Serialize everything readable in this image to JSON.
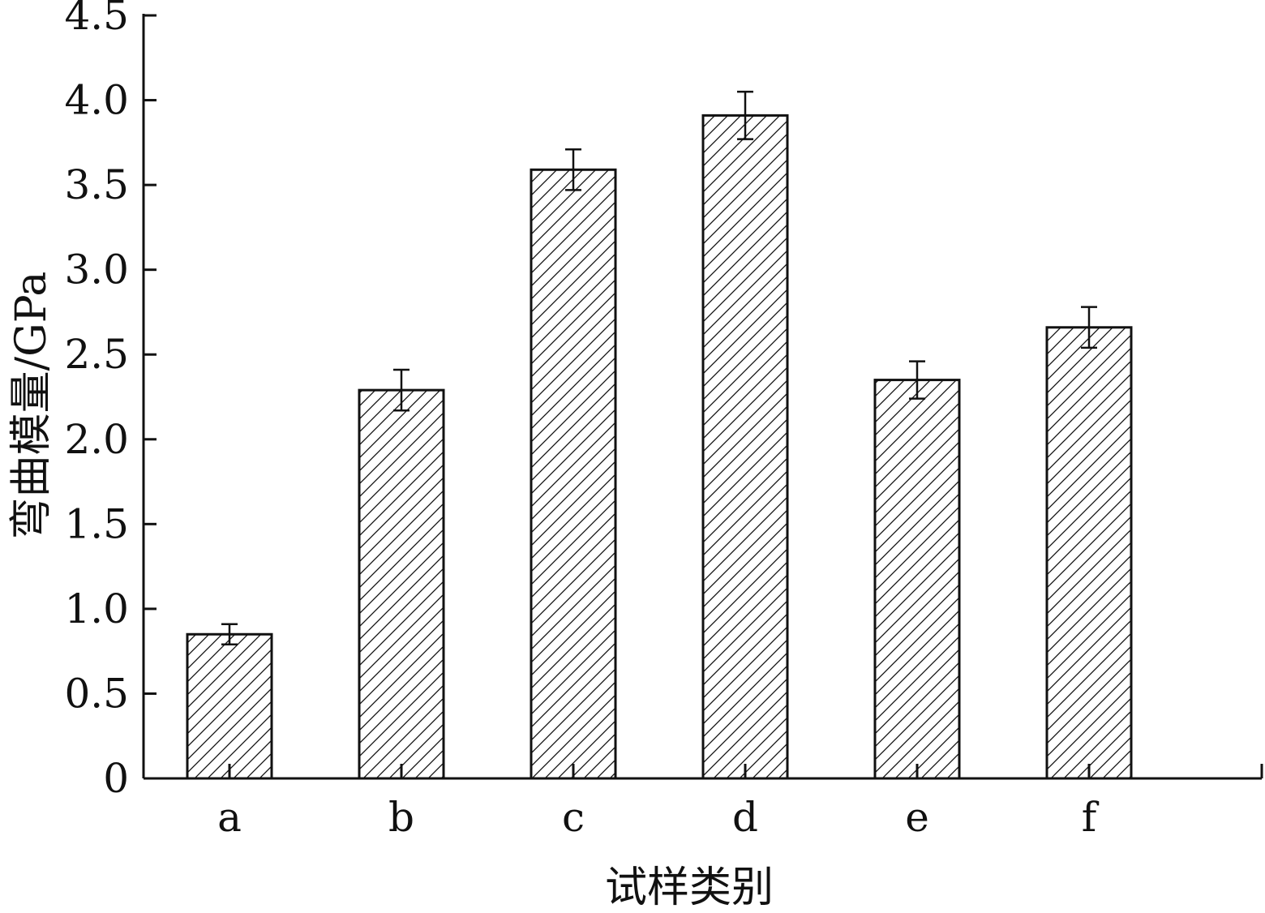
{
  "chart_data": {
    "type": "bar",
    "categories": [
      "a",
      "b",
      "c",
      "d",
      "e",
      "f"
    ],
    "values": [
      0.85,
      2.29,
      3.59,
      3.91,
      2.35,
      2.66
    ],
    "errors": [
      0.06,
      0.12,
      0.12,
      0.14,
      0.11,
      0.12
    ],
    "title": "",
    "xlabel": "试样类别",
    "ylabel": "弯曲模量/GPa",
    "ylim": [
      0,
      4.5
    ],
    "yticks": [
      "0",
      "0.5",
      "1.0",
      "1.5",
      "2.0",
      "2.5",
      "3.0",
      "3.5",
      "4.0",
      "4.5"
    ],
    "bar_fill": "hatched diagonal lines",
    "colors": {
      "bar_stroke": "#111111",
      "hatch": "#111111",
      "background": "#ffffff"
    },
    "grid": false,
    "legend": "none"
  }
}
